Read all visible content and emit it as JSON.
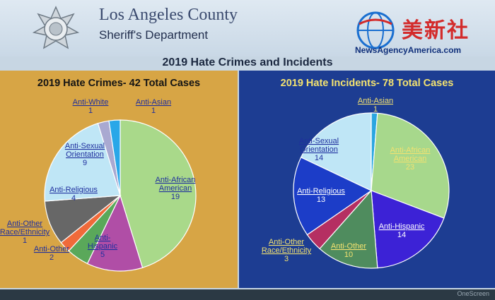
{
  "header": {
    "org_title": "Los Angeles County",
    "org_subtitle": "Sheriff's Department"
  },
  "slide_title": "2019 Hate Crimes and Incidents",
  "watermark": {
    "chinese": "美新社",
    "url": "NewsAgencyAmerica.com"
  },
  "footer": {
    "brand": "OneScreen"
  },
  "chart_data": [
    {
      "type": "pie",
      "title": "2019 Hate Crimes- 42 Total Cases",
      "slices": [
        {
          "label": "Anti-African American",
          "value": 19,
          "color": "#a9d98a"
        },
        {
          "label": "Anti-Hispanic",
          "value": 5,
          "color": "#b04ea6"
        },
        {
          "label": "Anti-Other",
          "value": 2,
          "color": "#5aa85a"
        },
        {
          "label": "Anti-Other Race/Ethnicity",
          "value": 1,
          "color": "#f06a3a"
        },
        {
          "label": "Anti-Religious",
          "value": 4,
          "color": "#676767"
        },
        {
          "label": "Anti-Sexual Orientation",
          "value": 9,
          "color": "#bfe6f6"
        },
        {
          "label": "Anti-White",
          "value": 1,
          "color": "#a9a9d1"
        },
        {
          "label": "Anti-Asian",
          "value": 1,
          "color": "#29a7e8"
        }
      ]
    },
    {
      "type": "pie",
      "title": "2019 Hate Incidents- 78 Total Cases",
      "slices": [
        {
          "label": "Anti-Asian",
          "value": 1,
          "color": "#2aa6e0"
        },
        {
          "label": "Anti-African American",
          "value": 23,
          "color": "#a7d88c"
        },
        {
          "label": "Anti-Hispanic",
          "value": 14,
          "color": "#3c22d6"
        },
        {
          "label": "Anti-Other",
          "value": 10,
          "color": "#4f8c5e"
        },
        {
          "label": "Anti-Other Race/Ethnicity",
          "value": 3,
          "color": "#b52f62"
        },
        {
          "label": "Anti-Religious",
          "value": 13,
          "color": "#1c3dc8"
        },
        {
          "label": "Anti-Sexual Orientation",
          "value": 14,
          "color": "#bfe6f6"
        }
      ]
    }
  ]
}
